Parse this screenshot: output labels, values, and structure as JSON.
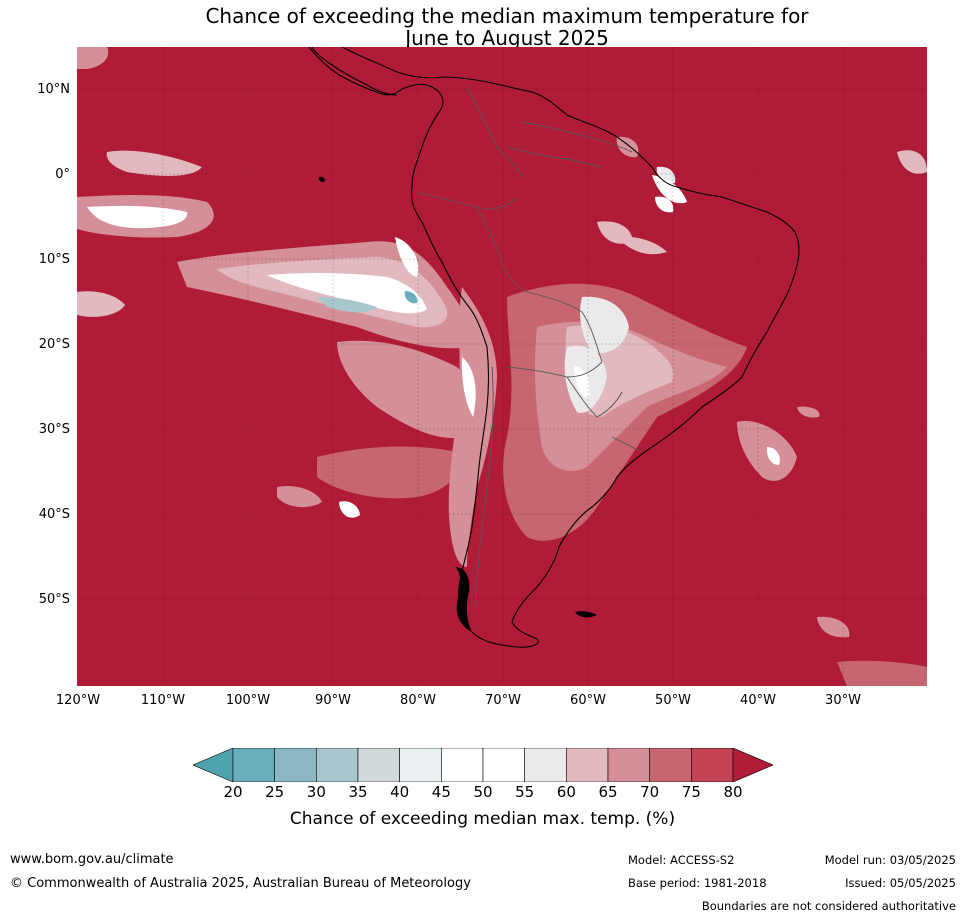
{
  "title": {
    "line1": "Chance of exceeding the median maximum temperature for",
    "line2": "June to August 2025"
  },
  "map": {
    "lat_labels": [
      "10°N",
      "0°",
      "10°S",
      "20°S",
      "30°S",
      "40°S",
      "50°S"
    ],
    "lon_labels": [
      "120°W",
      "110°W",
      "100°W",
      "90°W",
      "80°W",
      "70°W",
      "60°W",
      "50°W",
      "40°W",
      "30°W"
    ],
    "background_color": "#b01c38"
  },
  "colorbar": {
    "ticks": [
      "20",
      "25",
      "30",
      "35",
      "40",
      "45",
      "50",
      "55",
      "60",
      "65",
      "70",
      "75",
      "80"
    ],
    "label": "Chance of exceeding median max. temp. (%)",
    "colors": [
      "#4fa3b1",
      "#6aaebd",
      "#8bb8c4",
      "#a8c7cd",
      "#d2d9da",
      "#eaf0f2",
      "#ffffff",
      "#ffffff",
      "#ebe9ea",
      "#e2b9bf",
      "#d48f98",
      "#c76670",
      "#c24453",
      "#b01c38"
    ]
  },
  "footer": {
    "website": "www.bom.gov.au/climate",
    "copyright": "© Commonwealth of Australia 2025, Australian Bureau of Meteorology",
    "model": "Model: ACCESS-S2",
    "base_period": "Base period: 1981-2018",
    "model_run": "Model run: 03/05/2025",
    "issued": "Issued: 05/05/2025",
    "disclaimer": "Boundaries are not considered authoritative"
  }
}
